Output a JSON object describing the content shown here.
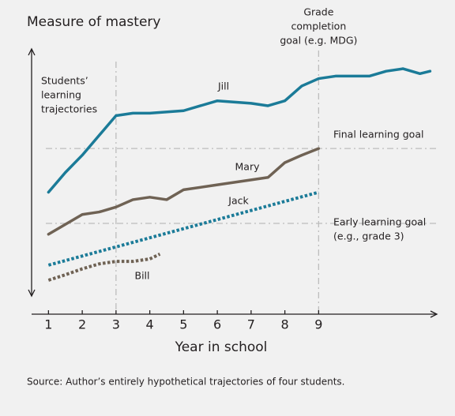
{
  "chart_data": {
    "type": "line",
    "title": "Measure of mastery",
    "xlabel": "Year in school",
    "source": "Source: Author’s entirely hypothetical trajectories of four students.",
    "annotation": [
      "Students’",
      "learning",
      "trajectories"
    ],
    "xlim": [
      0.5,
      12.5
    ],
    "xticks": [
      1,
      2,
      3,
      4,
      5,
      6,
      7,
      8,
      9
    ],
    "ylim": [
      0,
      100
    ],
    "hlines": [
      {
        "value": 59.7,
        "label": [
          "Final learning goal"
        ]
      },
      {
        "value": 29.4,
        "label": [
          "Early learning goal",
          "(e.g., grade 3)"
        ]
      }
    ],
    "vlines": [
      {
        "value": 3
      },
      {
        "value": 9,
        "label": [
          "Grade",
          "completion",
          "goal (e.g. MDG)"
        ]
      }
    ],
    "series": [
      {
        "name": "Jill",
        "color": "#1b7b98",
        "dotted": false,
        "x": [
          1,
          1.25,
          1.5,
          2,
          2.5,
          3,
          3.5,
          4,
          5,
          5.5,
          6,
          7,
          7.5,
          8,
          8.5,
          9,
          9.5,
          10,
          10.5,
          11,
          11.5,
          12,
          12.3
        ],
        "values": [
          42,
          46,
          50,
          57,
          65,
          73,
          74,
          74,
          75,
          77,
          79,
          78,
          77,
          79,
          85,
          88,
          89,
          89,
          89,
          91,
          92,
          90,
          91
        ]
      },
      {
        "name": "Mary",
        "color": "#6f6254",
        "dotted": false,
        "x": [
          1,
          1.5,
          2,
          2.5,
          3,
          3.5,
          4,
          4.5,
          5,
          6,
          7,
          7.5,
          8,
          8.5,
          9
        ],
        "values": [
          25,
          29,
          33,
          34,
          36,
          39,
          40,
          39,
          43,
          45,
          47,
          48,
          54,
          57,
          59.7
        ]
      },
      {
        "name": "Jack",
        "color": "#1b7b98",
        "dotted": true,
        "x": [
          1,
          9
        ],
        "values": [
          12.5,
          42
        ]
      },
      {
        "name": "Bill",
        "color": "#6f6254",
        "dotted": true,
        "x": [
          1,
          1.5,
          2,
          2.5,
          3,
          3.5,
          4,
          4.3
        ],
        "values": [
          6.4,
          8.6,
          11,
          13,
          14,
          14,
          15,
          17
        ]
      }
    ]
  }
}
